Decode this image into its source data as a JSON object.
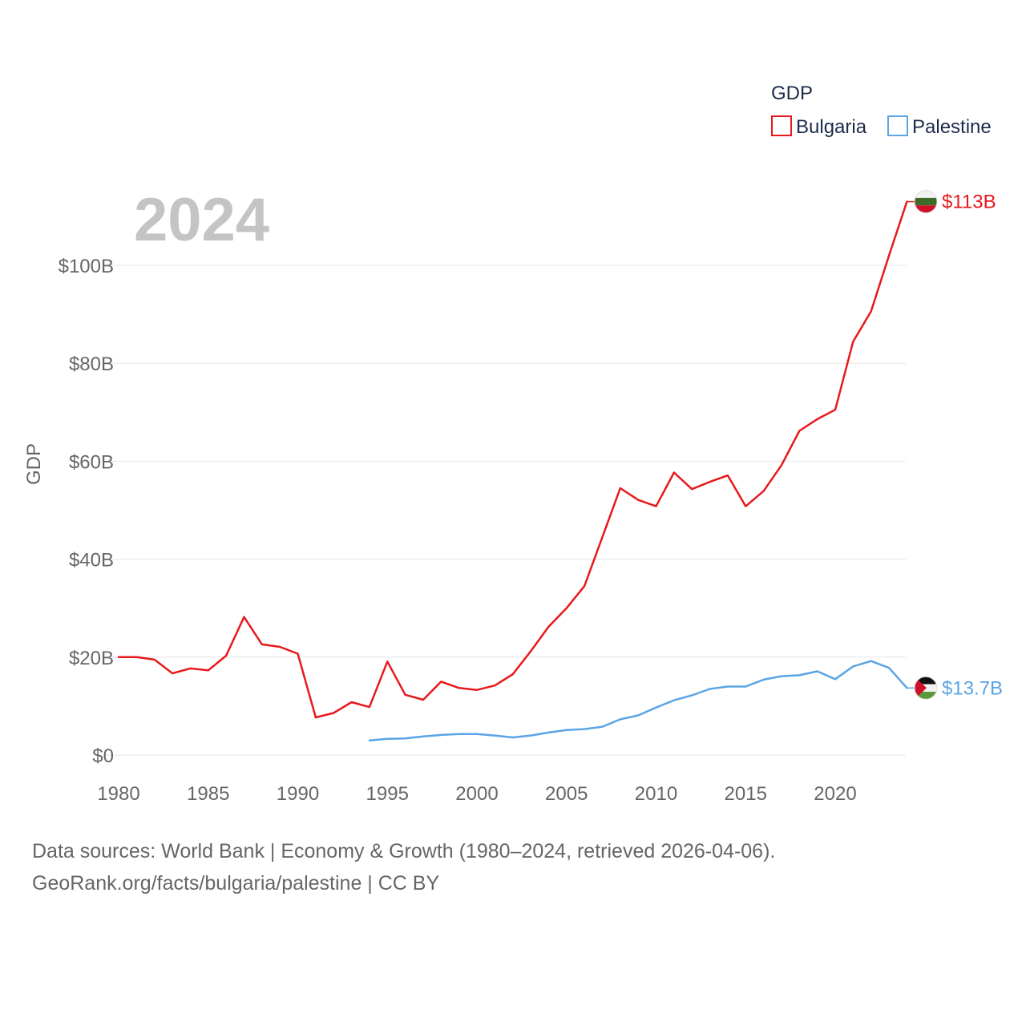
{
  "chart_data": {
    "type": "line",
    "year_label": "2024",
    "ylabel": "GDP",
    "legend_title": "GDP",
    "ylim": [
      0,
      120
    ],
    "xlim": [
      1980,
      2024
    ],
    "y_ticks": [
      {
        "value": 0,
        "label": "$0"
      },
      {
        "value": 20,
        "label": "$20B"
      },
      {
        "value": 40,
        "label": "$40B"
      },
      {
        "value": 60,
        "label": "$60B"
      },
      {
        "value": 80,
        "label": "$80B"
      },
      {
        "value": 100,
        "label": "$100B"
      }
    ],
    "x_ticks": [
      {
        "value": 1980,
        "label": "1980"
      },
      {
        "value": 1985,
        "label": "1985"
      },
      {
        "value": 1990,
        "label": "1990"
      },
      {
        "value": 1995,
        "label": "1995"
      },
      {
        "value": 2000,
        "label": "2000"
      },
      {
        "value": 2005,
        "label": "2005"
      },
      {
        "value": 2010,
        "label": "2010"
      },
      {
        "value": 2015,
        "label": "2015"
      },
      {
        "value": 2020,
        "label": "2020"
      }
    ],
    "series": [
      {
        "name": "Bulgaria",
        "color": "#e8191c",
        "flag": "bulgaria-flag",
        "end_label": "$113B",
        "x": [
          1980,
          1981,
          1982,
          1983,
          1984,
          1985,
          1986,
          1987,
          1988,
          1989,
          1990,
          1991,
          1992,
          1993,
          1994,
          1995,
          1996,
          1997,
          1998,
          1999,
          2000,
          2001,
          2002,
          2003,
          2004,
          2005,
          2006,
          2007,
          2008,
          2009,
          2010,
          2011,
          2012,
          2013,
          2014,
          2015,
          2016,
          2017,
          2018,
          2019,
          2020,
          2021,
          2022,
          2023,
          2024
        ],
        "values": [
          20.0,
          20.0,
          19.5,
          16.7,
          17.7,
          17.3,
          20.3,
          28.2,
          22.6,
          22.1,
          20.7,
          7.7,
          8.6,
          10.8,
          9.8,
          19.1,
          12.3,
          11.3,
          15.0,
          13.7,
          13.3,
          14.2,
          16.5,
          21.2,
          26.2,
          30.0,
          34.5,
          44.5,
          54.5,
          52.1,
          50.8,
          57.7,
          54.3,
          55.8,
          57.1,
          50.8,
          53.9,
          59.2,
          66.2,
          68.6,
          70.5,
          84.4,
          90.6,
          102.0,
          113.0
        ]
      },
      {
        "name": "Palestine",
        "color": "#5ba4e5",
        "flag": "palestine-flag",
        "end_label": "$13.7B",
        "x": [
          1994,
          1995,
          1996,
          1997,
          1998,
          1999,
          2000,
          2001,
          2002,
          2003,
          2004,
          2005,
          2006,
          2007,
          2008,
          2009,
          2010,
          2011,
          2012,
          2013,
          2014,
          2015,
          2016,
          2017,
          2018,
          2019,
          2020,
          2021,
          2022,
          2023,
          2024
        ],
        "values": [
          3.0,
          3.3,
          3.4,
          3.8,
          4.1,
          4.3,
          4.3,
          4.0,
          3.6,
          4.0,
          4.6,
          5.1,
          5.3,
          5.8,
          7.3,
          8.1,
          9.7,
          11.2,
          12.2,
          13.5,
          14.0,
          14.0,
          15.4,
          16.1,
          16.3,
          17.1,
          15.5,
          18.1,
          19.2,
          17.8,
          13.7
        ]
      }
    ]
  },
  "footer": {
    "line1": "Data sources: World Bank | Economy & Growth (1980–2024, retrieved 2026-04-06).",
    "line2": "GeoRank.org/facts/bulgaria/palestine | CC BY"
  }
}
